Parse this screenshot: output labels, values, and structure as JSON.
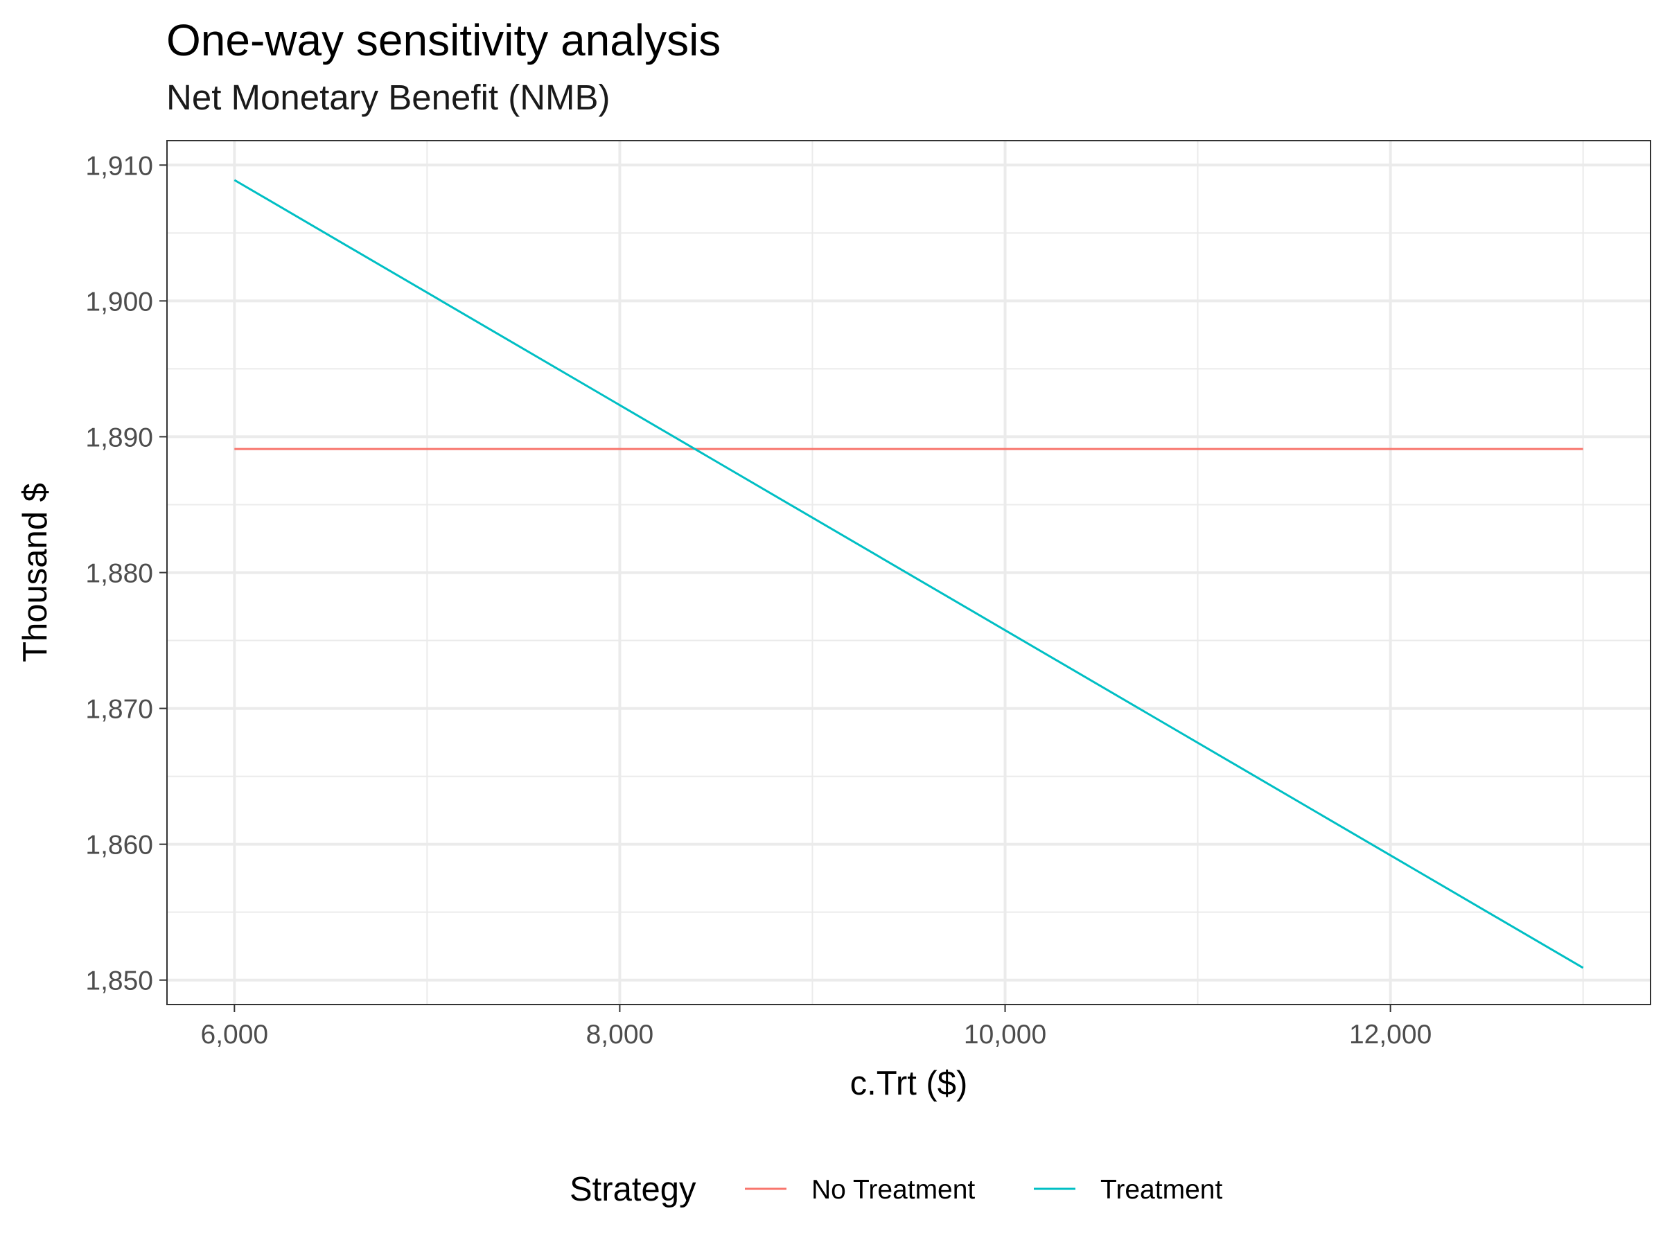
{
  "chart_data": {
    "type": "line",
    "title": "One-way sensitivity analysis",
    "subtitle": "Net Monetary Benefit (NMB)",
    "xlabel": "c.Trt ($)",
    "ylabel": "Thousand $",
    "xlim": [
      5650,
      13350
    ],
    "ylim": [
      1848.2,
      1911.8
    ],
    "x_ticks": [
      6000,
      8000,
      10000,
      12000
    ],
    "x_tick_labels": [
      "6,000",
      "8,000",
      "10,000",
      "12,000"
    ],
    "y_ticks": [
      1850,
      1860,
      1870,
      1880,
      1890,
      1900,
      1910
    ],
    "y_tick_labels": [
      "1,850",
      "1,860",
      "1,870",
      "1,880",
      "1,890",
      "1,900",
      "1,910"
    ],
    "grid": true,
    "legend_title": "Strategy",
    "legend_position": "bottom",
    "series": [
      {
        "name": "No Treatment",
        "color": "#F8766D",
        "x": [
          6000,
          13000
        ],
        "y": [
          1889.1,
          1889.1
        ]
      },
      {
        "name": "Treatment",
        "color": "#00BFC4",
        "x": [
          6000,
          13000
        ],
        "y": [
          1908.9,
          1850.9
        ]
      }
    ]
  }
}
